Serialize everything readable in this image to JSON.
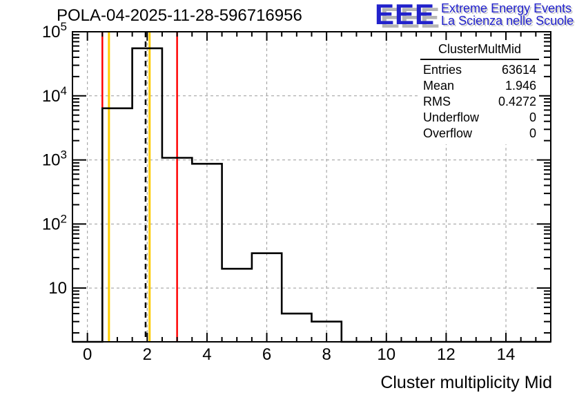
{
  "page": {
    "title": "POLA-04-2025-11-28-596716956"
  },
  "logo": {
    "acronym": "EEE",
    "line1": "Extreme Energy Events",
    "line2": "La Scienza nelle Scuole",
    "color": "#2222cc"
  },
  "stats_box": {
    "title": "ClusterMultMid",
    "rows": [
      {
        "label": "Entries",
        "value": "63614"
      },
      {
        "label": "Mean",
        "value": "1.946"
      },
      {
        "label": "RMS",
        "value": "0.4272"
      },
      {
        "label": "Underflow",
        "value": "0"
      },
      {
        "label": "Overflow",
        "value": "0"
      }
    ]
  },
  "chart_data": {
    "type": "bar",
    "subtype": "step-histogram-outline",
    "title": "POLA-04-2025-11-28-596716956",
    "xlabel": "Cluster multiplicity Mid",
    "ylabel": "",
    "x_range": [
      -0.5,
      15.5
    ],
    "y_range": [
      1.45,
      100000
    ],
    "y_scale": "log",
    "grid": true,
    "grid_style": "dashed",
    "bin_width": 1,
    "bin_centers": [
      0,
      1,
      2,
      3,
      4,
      5,
      6,
      7,
      8,
      9,
      10,
      11,
      12,
      13,
      14,
      15
    ],
    "counts": [
      0,
      6400,
      55200,
      1080,
      870,
      20,
      35,
      4,
      3,
      0,
      0,
      0,
      0,
      0,
      0,
      0
    ],
    "x_major_ticks": [
      0,
      2,
      4,
      6,
      8,
      10,
      12,
      14
    ],
    "x_minor_step": 0.5,
    "y_decades": [
      1,
      2,
      3,
      4,
      5
    ],
    "marker_lines": [
      {
        "name": "red-cut-low",
        "x": 0.5,
        "color": "#ff0000",
        "dash": "solid"
      },
      {
        "name": "yellow-line-low",
        "x": 0.72,
        "color": "#ffcc00",
        "dash": "solid"
      },
      {
        "name": "mean-line",
        "x": 1.946,
        "color": "#000000",
        "dash": "dashed"
      },
      {
        "name": "yellow-line-high",
        "x": 2.08,
        "color": "#ffcc00",
        "dash": "solid"
      },
      {
        "name": "red-cut-high",
        "x": 3.0,
        "color": "#ff0000",
        "dash": "solid"
      }
    ],
    "colors": {
      "histogram": "#000000",
      "grid": "#999999",
      "frame": "#000000",
      "red_marker": "#ff0000",
      "yellow_marker": "#ffcc00"
    }
  }
}
